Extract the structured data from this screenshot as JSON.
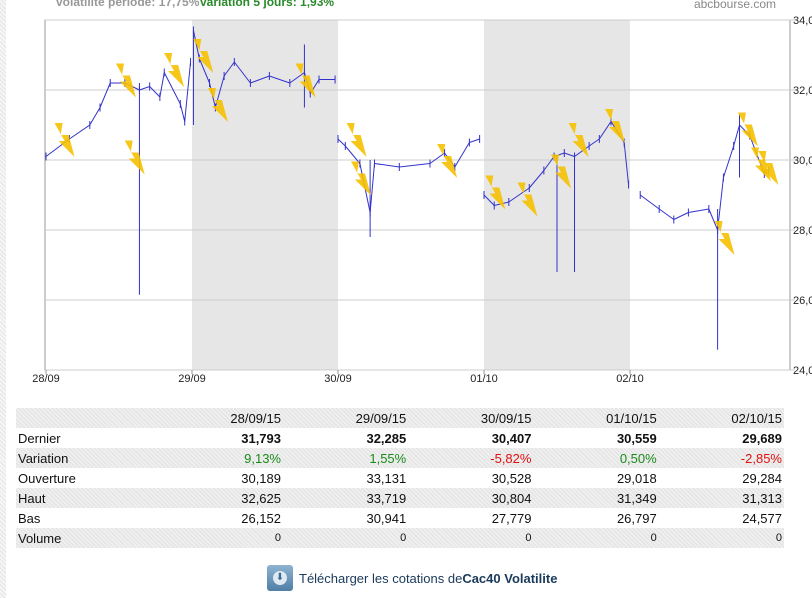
{
  "header": {
    "volatility": "volatilité période: 17,75%",
    "variation5": "variation 5 jours: 1,93%",
    "site": "abcbourse.com"
  },
  "chart_data": {
    "type": "line",
    "title": "Cac40 Volatilite",
    "ylim": [
      24,
      34
    ],
    "yticks": [
      "34,00",
      "32,00",
      "30,00",
      "28,00",
      "26,00",
      "24,00"
    ],
    "xticks": [
      "28/09",
      "29/09",
      "30/09",
      "01/10",
      "02/10"
    ],
    "xlim": [
      0,
      5.1
    ],
    "series": [
      {
        "name": "Cac40 Volatilite",
        "points": [
          [
            0,
            30.1
          ],
          [
            0.16,
            30.6
          ],
          [
            0.3,
            31.0
          ],
          [
            0.37,
            31.5
          ],
          [
            0.44,
            32.2
          ],
          [
            0.54,
            32.2
          ],
          [
            0.64,
            32.0
          ],
          [
            0.71,
            32.1
          ],
          [
            0.78,
            31.8
          ],
          [
            0.81,
            32.5
          ],
          [
            0.92,
            31.6
          ],
          [
            0.95,
            31.1
          ],
          [
            0.99,
            32.8
          ],
          [
            1.01,
            33.7
          ],
          [
            1.05,
            32.9
          ],
          [
            1.12,
            32.2
          ],
          [
            1.16,
            31.5
          ],
          [
            1.22,
            32.4
          ],
          [
            1.29,
            32.8
          ],
          [
            1.4,
            32.2
          ],
          [
            1.53,
            32.4
          ],
          [
            1.67,
            32.2
          ],
          [
            1.77,
            32.5
          ],
          [
            1.81,
            31.9
          ],
          [
            1.87,
            32.3
          ],
          [
            1.98,
            32.3
          ],
          [
            2.0,
            30.6
          ],
          [
            2.05,
            30.4
          ],
          [
            2.15,
            29.9
          ],
          [
            2.22,
            28.5
          ],
          [
            2.25,
            29.9
          ],
          [
            2.42,
            29.8
          ],
          [
            2.63,
            29.9
          ],
          [
            2.73,
            30.2
          ],
          [
            2.8,
            29.8
          ],
          [
            2.9,
            30.5
          ],
          [
            2.97,
            30.6
          ],
          [
            3.0,
            29.0
          ],
          [
            3.07,
            28.7
          ],
          [
            3.17,
            28.8
          ],
          [
            3.31,
            29.2
          ],
          [
            3.41,
            29.7
          ],
          [
            3.48,
            30.1
          ],
          [
            3.55,
            30.2
          ],
          [
            3.62,
            30.1
          ],
          [
            3.72,
            30.4
          ],
          [
            3.79,
            30.6
          ],
          [
            3.87,
            31.1
          ],
          [
            3.96,
            30.5
          ],
          [
            3.99,
            29.3
          ],
          [
            4.07,
            29.0
          ],
          [
            4.2,
            28.6
          ],
          [
            4.3,
            28.3
          ],
          [
            4.4,
            28.5
          ],
          [
            4.54,
            28.6
          ],
          [
            4.6,
            28.0
          ],
          [
            4.64,
            29.5
          ],
          [
            4.71,
            30.4
          ],
          [
            4.75,
            31.0
          ],
          [
            4.82,
            30.7
          ],
          [
            4.92,
            29.6
          ],
          [
            4.95,
            29.7
          ]
        ]
      }
    ],
    "spikes": [
      [
        0.64,
        26.15,
        32.2
      ],
      [
        1.01,
        31.0,
        33.7
      ],
      [
        1.77,
        31.5,
        33.3
      ],
      [
        2.22,
        27.8,
        30.0
      ],
      [
        3.5,
        26.8,
        30.1
      ],
      [
        3.62,
        26.8,
        30.2
      ],
      [
        4.6,
        24.58,
        28.6
      ],
      [
        4.75,
        29.5,
        31.3
      ]
    ],
    "events": [
      [
        0.1,
        30.6
      ],
      [
        0.58,
        30.1
      ],
      [
        0.52,
        32.3
      ],
      [
        0.85,
        32.6
      ],
      [
        1.05,
        33.0
      ],
      [
        1.15,
        31.6
      ],
      [
        1.75,
        32.3
      ],
      [
        2.1,
        30.6
      ],
      [
        2.13,
        29.5
      ],
      [
        2.72,
        30.0
      ],
      [
        3.05,
        29.1
      ],
      [
        3.27,
        28.9
      ],
      [
        3.5,
        29.7
      ],
      [
        3.62,
        30.6
      ],
      [
        3.87,
        31.0
      ],
      [
        4.62,
        27.8
      ],
      [
        4.78,
        30.9
      ],
      [
        4.87,
        29.9
      ],
      [
        4.92,
        29.8
      ]
    ],
    "shaded_days": [
      1,
      3
    ]
  },
  "table": {
    "headers": [
      "28/09/15",
      "29/09/15",
      "30/09/15",
      "01/10/15",
      "02/10/15"
    ],
    "rows": [
      {
        "label": "Dernier",
        "values": [
          "31,793",
          "32,285",
          "30,407",
          "30,559",
          "29,689"
        ]
      },
      {
        "label": "Variation",
        "values": [
          "9,13%",
          "1,55%",
          "-5,82%",
          "0,50%",
          "-2,85%"
        ]
      },
      {
        "label": "Ouverture",
        "values": [
          "30,189",
          "33,131",
          "30,528",
          "29,018",
          "29,284"
        ]
      },
      {
        "label": "Haut",
        "values": [
          "32,625",
          "33,719",
          "30,804",
          "31,349",
          "31,313"
        ]
      },
      {
        "label": "Bas",
        "values": [
          "26,152",
          "30,941",
          "27,779",
          "26,797",
          "24,577"
        ]
      },
      {
        "label": "Volume",
        "values": [
          "0",
          "0",
          "0",
          "0",
          "0"
        ]
      }
    ]
  },
  "download": {
    "text": "Télécharger les cotations de ",
    "name": "Cac40 Volatilite"
  },
  "colors": {
    "line": "#3333cc",
    "shade": "#e6e6e6",
    "bolt": "#f5c000",
    "pos": "#1a8a1a",
    "neg": "#e01010"
  }
}
